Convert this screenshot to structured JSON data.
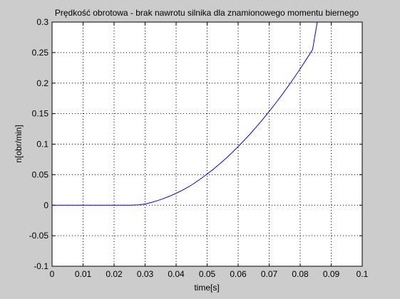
{
  "chart_data": {
    "type": "line",
    "title": "Prędkość obrotowa - brak nawrotu silnika dla znamionowego momentu biernego",
    "xlabel": "time[s]",
    "ylabel": "n[obr/min]",
    "xlim": [
      0,
      0.1
    ],
    "ylim": [
      -0.1,
      0.3
    ],
    "xticks": [
      0,
      0.01,
      0.02,
      0.03,
      0.04,
      0.05,
      0.06,
      0.07,
      0.08,
      0.09,
      0.1
    ],
    "xtick_labels": [
      "0",
      "0.01",
      "0.02",
      "0.03",
      "0.04",
      "0.05",
      "0.06",
      "0.07",
      "0.08",
      "0.09",
      "0.1"
    ],
    "yticks": [
      -0.1,
      -0.05,
      0,
      0.05,
      0.1,
      0.15,
      0.2,
      0.25,
      0.3
    ],
    "ytick_labels": [
      "-0.1",
      "-0.05",
      "0",
      "0.05",
      "0.1",
      "0.15",
      "0.2",
      "0.25",
      "0.3"
    ],
    "grid": true,
    "line_color": "#0000ff",
    "series": [
      {
        "x": [
          0,
          0.005,
          0.01,
          0.015,
          0.02,
          0.025,
          0.028,
          0.03,
          0.032,
          0.034,
          0.036,
          0.038,
          0.04,
          0.042,
          0.044,
          0.046,
          0.048,
          0.05,
          0.052,
          0.054,
          0.056,
          0.058,
          0.06,
          0.062,
          0.064,
          0.066,
          0.068,
          0.07,
          0.072,
          0.074,
          0.076,
          0.078,
          0.08,
          0.082,
          0.084,
          0.0855
        ],
        "y": [
          0,
          0,
          0,
          0,
          0,
          0,
          0.0005,
          0.002,
          0.0045,
          0.0075,
          0.011,
          0.015,
          0.0195,
          0.0245,
          0.03,
          0.0365,
          0.0435,
          0.051,
          0.059,
          0.0675,
          0.0765,
          0.086,
          0.096,
          0.1065,
          0.1175,
          0.129,
          0.141,
          0.1535,
          0.1665,
          0.18,
          0.194,
          0.2085,
          0.2235,
          0.239,
          0.255,
          0.3
        ]
      }
    ]
  }
}
